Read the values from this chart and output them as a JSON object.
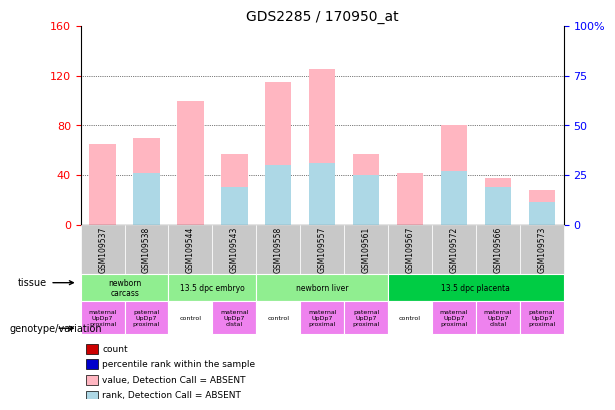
{
  "title": "GDS2285 / 170950_at",
  "samples": [
    "GSM109537",
    "GSM109538",
    "GSM109544",
    "GSM109543",
    "GSM109558",
    "GSM109557",
    "GSM109561",
    "GSM109567",
    "GSM109572",
    "GSM109566",
    "GSM109573"
  ],
  "bar_values_pink": [
    65,
    70,
    100,
    57,
    115,
    125,
    57,
    42,
    80,
    38,
    28
  ],
  "bar_values_blue": [
    0,
    42,
    0,
    30,
    48,
    50,
    40,
    0,
    43,
    30,
    18
  ],
  "ylim_left": [
    0,
    160
  ],
  "ylim_right": [
    0,
    100
  ],
  "yticks_left": [
    0,
    40,
    80,
    120,
    160
  ],
  "yticks_right": [
    0,
    25,
    50,
    75,
    100
  ],
  "ytick_labels_left": [
    "0",
    "40",
    "80",
    "120",
    "160"
  ],
  "ytick_labels_right": [
    "0",
    "25",
    "50",
    "75",
    "100%"
  ],
  "tissue_groups": [
    {
      "label": "newborn\ncarcass",
      "start": 0,
      "end": 2,
      "color": "#90ee90"
    },
    {
      "label": "13.5 dpc embryo",
      "start": 2,
      "end": 4,
      "color": "#90ee90"
    },
    {
      "label": "newborn liver",
      "start": 4,
      "end": 7,
      "color": "#90ee90"
    },
    {
      "label": "13.5 dpc placenta",
      "start": 7,
      "end": 11,
      "color": "#00cc44"
    }
  ],
  "genotype_groups": [
    {
      "label": "maternal\nUpDp7\nproximal",
      "start": 0,
      "end": 1,
      "color": "#ee82ee"
    },
    {
      "label": "paternal\nUpDp7\nproximal",
      "start": 1,
      "end": 2,
      "color": "#ee82ee"
    },
    {
      "label": "control",
      "start": 2,
      "end": 3,
      "color": "#ffffff"
    },
    {
      "label": "maternal\nUpDp7\ndistal",
      "start": 3,
      "end": 4,
      "color": "#ee82ee"
    },
    {
      "label": "control",
      "start": 4,
      "end": 5,
      "color": "#ffffff"
    },
    {
      "label": "maternal\nUpDp7\nproximal",
      "start": 5,
      "end": 6,
      "color": "#ee82ee"
    },
    {
      "label": "paternal\nUpDp7\nproximal",
      "start": 6,
      "end": 7,
      "color": "#ee82ee"
    },
    {
      "label": "control",
      "start": 7,
      "end": 8,
      "color": "#ffffff"
    },
    {
      "label": "maternal\nUpDp7\nproximal",
      "start": 8,
      "end": 9,
      "color": "#ee82ee"
    },
    {
      "label": "maternal\nUpDp7\ndistal",
      "start": 9,
      "end": 10,
      "color": "#ee82ee"
    },
    {
      "label": "paternal\nUpDp7\nproximal",
      "start": 10,
      "end": 11,
      "color": "#ee82ee"
    }
  ],
  "legend_items": [
    {
      "label": "count",
      "color": "#cc0000",
      "marker": "s"
    },
    {
      "label": "percentile rank within the sample",
      "color": "#0000cc",
      "marker": "s"
    },
    {
      "label": "value, Detection Call = ABSENT",
      "color": "#ffb6c1",
      "marker": "s"
    },
    {
      "label": "rank, Detection Call = ABSENT",
      "color": "#add8e6",
      "marker": "s"
    }
  ],
  "bar_color_pink": "#ffb6c1",
  "bar_color_blue": "#add8e6",
  "bg_color_sample": "#c8c8c8",
  "tissue_color_light": "#90ee90",
  "tissue_color_dark": "#33cc55",
  "genotype_color": "#ee82ee",
  "control_color": "#ffffff"
}
